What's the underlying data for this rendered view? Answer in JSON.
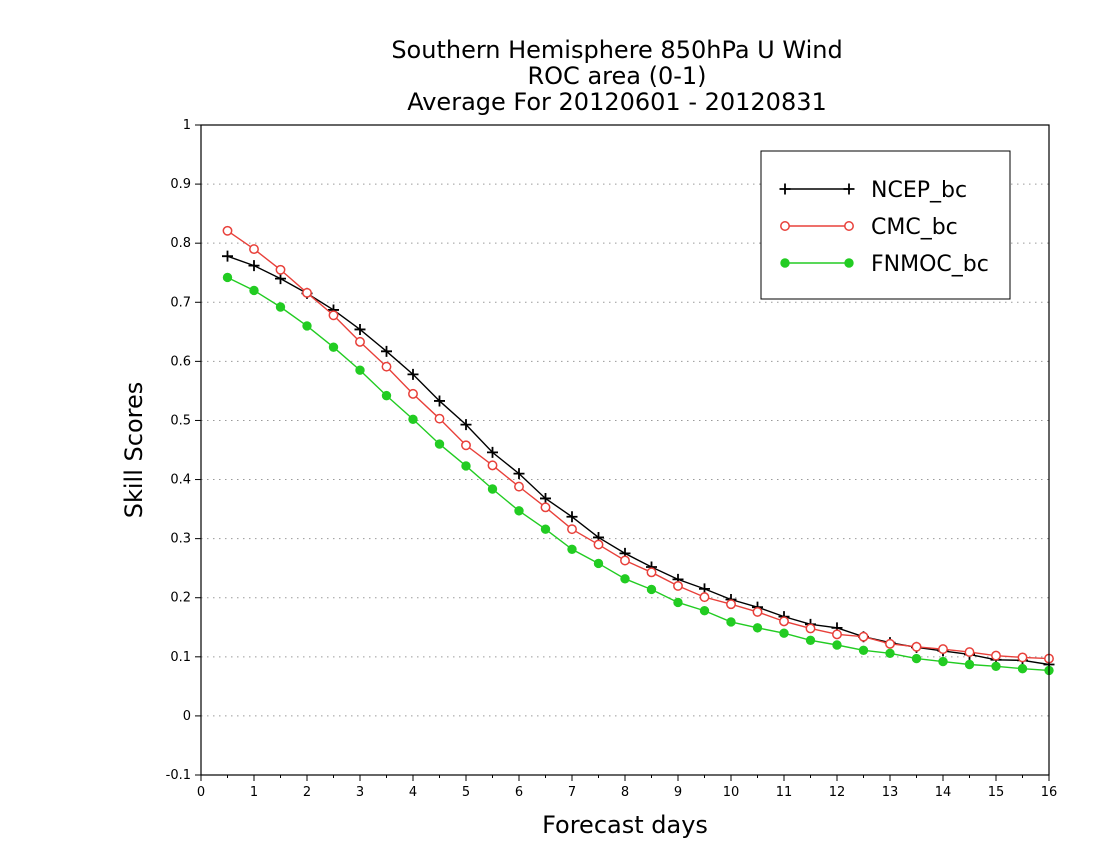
{
  "chart_data": {
    "type": "line",
    "title": [
      "Southern Hemisphere 850hPa U Wind",
      "ROC area (0-1)",
      "Average For 20120601 - 20120831"
    ],
    "xlabel": "Forecast days",
    "ylabel": "Skill Scores",
    "xlim": [
      0,
      16
    ],
    "ylim": [
      -0.1,
      1
    ],
    "x_ticks": [
      "0",
      "1",
      "2",
      "3",
      "4",
      "5",
      "6",
      "7",
      "8",
      "9",
      "10",
      "11",
      "12",
      "13",
      "14",
      "15",
      "16"
    ],
    "y_ticks": [
      "-0.1",
      "0",
      "0.1",
      "0.2",
      "0.3",
      "0.4",
      "0.5",
      "0.6",
      "0.7",
      "0.8",
      "0.9",
      "1"
    ],
    "grid": true,
    "legend_position": "top-right",
    "x": [
      0.5,
      1,
      1.5,
      2,
      2.5,
      3,
      3.5,
      4,
      4.5,
      5,
      5.5,
      6,
      6.5,
      7,
      7.5,
      8,
      8.5,
      9,
      9.5,
      10,
      10.5,
      11,
      11.5,
      12,
      12.5,
      13,
      13.5,
      14,
      14.5,
      15,
      15.5,
      16
    ],
    "series": [
      {
        "name": "NCEP_bc",
        "color": "#000000",
        "marker": "plus",
        "values": [
          0.778,
          0.762,
          0.74,
          0.715,
          0.687,
          0.654,
          0.617,
          0.578,
          0.533,
          0.493,
          0.446,
          0.41,
          0.368,
          0.337,
          0.302,
          0.275,
          0.252,
          0.231,
          0.215,
          0.197,
          0.184,
          0.168,
          0.155,
          0.149,
          0.134,
          0.124,
          0.116,
          0.11,
          0.104,
          0.095,
          0.094,
          0.087
        ]
      },
      {
        "name": "CMC_bc",
        "color": "#e8403a",
        "marker": "open-circle",
        "values": [
          0.821,
          0.79,
          0.755,
          0.716,
          0.678,
          0.633,
          0.591,
          0.545,
          0.503,
          0.458,
          0.424,
          0.388,
          0.353,
          0.316,
          0.29,
          0.263,
          0.243,
          0.22,
          0.201,
          0.189,
          0.176,
          0.16,
          0.148,
          0.138,
          0.134,
          0.122,
          0.117,
          0.113,
          0.108,
          0.102,
          0.099,
          0.097
        ]
      },
      {
        "name": "FNMOC_bc",
        "color": "#22cc22",
        "marker": "filled-circle",
        "values": [
          0.742,
          0.72,
          0.692,
          0.66,
          0.624,
          0.585,
          0.542,
          0.502,
          0.46,
          0.423,
          0.384,
          0.347,
          0.316,
          0.282,
          0.258,
          0.232,
          0.214,
          0.192,
          0.178,
          0.159,
          0.149,
          0.14,
          0.128,
          0.12,
          0.111,
          0.106,
          0.097,
          0.092,
          0.087,
          0.084,
          0.08,
          0.077
        ]
      }
    ]
  }
}
